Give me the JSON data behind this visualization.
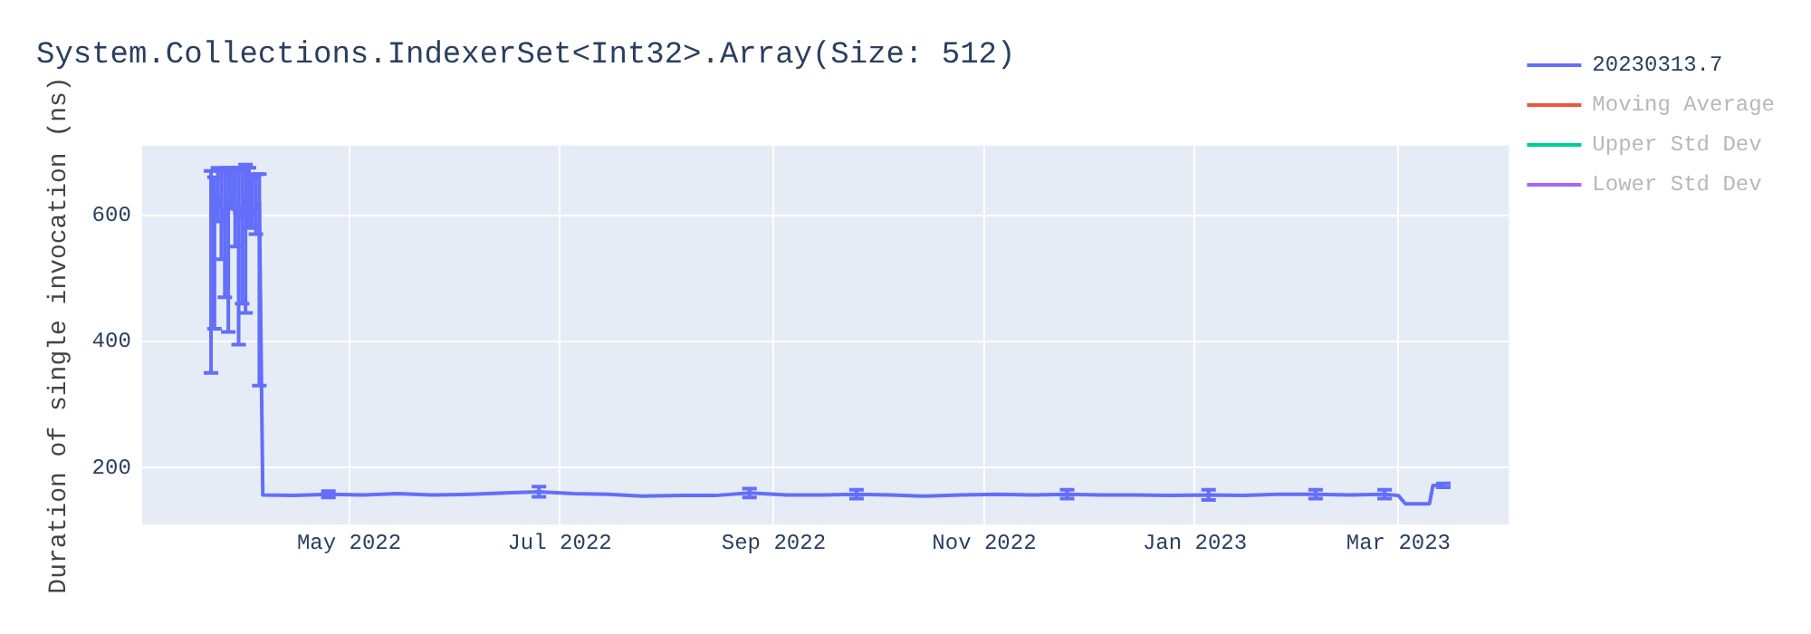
{
  "chart_data": {
    "type": "line",
    "title": "System.Collections.IndexerSet<Int32>.Array(Size: 512)",
    "ylabel": "Duration of single invocation (ns)",
    "x": [
      "2022-03-22",
      "2022-03-23",
      "2022-03-24",
      "2022-03-25",
      "2022-03-26",
      "2022-03-27",
      "2022-03-28",
      "2022-03-29",
      "2022-03-30",
      "2022-03-31",
      "2022-04-01",
      "2022-04-02",
      "2022-04-03",
      "2022-04-04",
      "2022-04-05",
      "2022-04-06",
      "2022-04-15",
      "2022-04-25",
      "2022-05-05",
      "2022-05-15",
      "2022-05-25",
      "2022-06-05",
      "2022-06-15",
      "2022-06-25",
      "2022-07-05",
      "2022-07-15",
      "2022-07-25",
      "2022-08-05",
      "2022-08-15",
      "2022-08-25",
      "2022-09-05",
      "2022-09-15",
      "2022-09-25",
      "2022-10-05",
      "2022-10-15",
      "2022-10-25",
      "2022-11-05",
      "2022-11-15",
      "2022-11-25",
      "2022-12-05",
      "2022-12-15",
      "2022-12-25",
      "2023-01-05",
      "2023-01-15",
      "2023-01-25",
      "2023-02-05",
      "2023-02-15",
      "2023-02-25",
      "2023-03-01",
      "2023-03-03",
      "2023-03-10",
      "2023-03-11",
      "2023-03-14"
    ],
    "series": [
      {
        "name": "20230313.7",
        "color": "#636efa",
        "values": [
          620,
          600,
          630,
          610,
          590,
          625,
          640,
          600,
          615,
          595,
          630,
          620,
          600,
          610,
          620,
          157,
          156,
          158,
          157,
          159,
          157,
          158,
          160,
          162,
          159,
          158,
          155,
          156,
          156,
          160,
          157,
          157,
          158,
          157,
          155,
          157,
          158,
          157,
          158,
          157,
          157,
          156,
          157,
          156,
          158,
          158,
          157,
          158,
          156,
          143,
          143,
          172,
          172
        ],
        "errors": [
          [
            350,
            670
          ],
          [
            420,
            660
          ],
          [
            590,
            675
          ],
          [
            530,
            670
          ],
          [
            470,
            670
          ],
          [
            415,
            675
          ],
          [
            610,
            675
          ],
          [
            550,
            670
          ],
          [
            395,
            675
          ],
          [
            460,
            670
          ],
          [
            445,
            680
          ],
          [
            580,
            675
          ],
          [
            580,
            660
          ],
          [
            570,
            665
          ],
          [
            330,
            665
          ],
          null,
          null,
          5,
          null,
          null,
          null,
          null,
          null,
          8,
          null,
          null,
          null,
          null,
          null,
          7,
          null,
          null,
          7,
          null,
          null,
          null,
          null,
          null,
          7,
          null,
          null,
          null,
          8,
          null,
          null,
          7,
          null,
          7,
          null,
          null,
          null,
          null,
          3
        ]
      },
      {
        "name": "Moving Average",
        "color": "#ef553b",
        "values": [
          null,
          null,
          null,
          null,
          null,
          null,
          null,
          null,
          null,
          null,
          null,
          null,
          null,
          null,
          null,
          null,
          null,
          null,
          null,
          null,
          null,
          null,
          null,
          null,
          null,
          null,
          null,
          null,
          null,
          null,
          null,
          null,
          null,
          null,
          null,
          null,
          null,
          null,
          null,
          null,
          null,
          null,
          null,
          null,
          null,
          null,
          null,
          null,
          null,
          null,
          null,
          null,
          null
        ]
      },
      {
        "name": "Upper Std Dev",
        "color": "#00cc96",
        "values": [
          null,
          null,
          null,
          null,
          null,
          null,
          null,
          null,
          null,
          null,
          null,
          null,
          null,
          null,
          null,
          null,
          null,
          null,
          null,
          null,
          null,
          null,
          null,
          null,
          null,
          null,
          null,
          null,
          null,
          null,
          null,
          null,
          null,
          null,
          null,
          null,
          null,
          null,
          null,
          null,
          null,
          null,
          null,
          null,
          null,
          null,
          null,
          null,
          null,
          null,
          null,
          null,
          null
        ]
      },
      {
        "name": "Lower Std Dev",
        "color": "#ab63fa",
        "values": [
          null,
          null,
          null,
          null,
          null,
          null,
          null,
          null,
          null,
          null,
          null,
          null,
          null,
          null,
          null,
          null,
          null,
          null,
          null,
          null,
          null,
          null,
          null,
          null,
          null,
          null,
          null,
          null,
          null,
          null,
          null,
          null,
          null,
          null,
          null,
          null,
          null,
          null,
          null,
          null,
          null,
          null,
          null,
          null,
          null,
          null,
          null,
          null,
          null,
          null,
          null,
          null,
          null
        ]
      }
    ],
    "xlim": [
      "2022-03-02",
      "2023-04-02"
    ],
    "xticks": [
      {
        "value": "2022-05-01",
        "label": "May 2022"
      },
      {
        "value": "2022-07-01",
        "label": "Jul 2022"
      },
      {
        "value": "2022-09-01",
        "label": "Sep 2022"
      },
      {
        "value": "2022-11-01",
        "label": "Nov 2022"
      },
      {
        "value": "2023-01-01",
        "label": "Jan 2023"
      },
      {
        "value": "2023-03-01",
        "label": "Mar 2023"
      }
    ],
    "ylim": [
      110,
      710
    ],
    "yticks": [
      200,
      400,
      600
    ],
    "grid": true,
    "legend": "top right",
    "marker": "none",
    "line_style": "solid"
  }
}
